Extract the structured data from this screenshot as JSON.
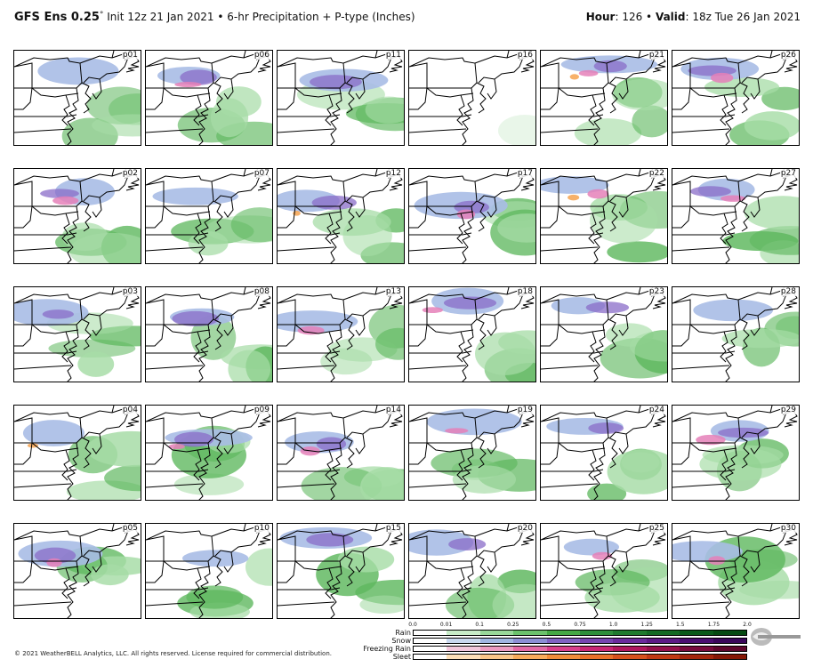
{
  "header": {
    "model": "GFS Ens 0.25",
    "degree": "°",
    "init": " Init 12z 21 Jan 2021",
    "sep": " • ",
    "product": "6-hr Precipitation + P-type (Inches)",
    "hour_label": "Hour",
    "hour_value": ": 126",
    "valid_label": "Valid",
    "valid_value": ": 18z Tue 26 Jan 2021"
  },
  "panels": [
    [
      "p01",
      "p06",
      "p11",
      "p16",
      "p21",
      "p26"
    ],
    [
      "p02",
      "p07",
      "p12",
      "p17",
      "p22",
      "p27"
    ],
    [
      "p03",
      "p08",
      "p13",
      "p18",
      "p23",
      "p28"
    ],
    [
      "p04",
      "p09",
      "p14",
      "p19",
      "p24",
      "p29"
    ],
    [
      "p05",
      "p10",
      "p15",
      "p20",
      "p25",
      "p30"
    ]
  ],
  "legend": {
    "ticks": [
      "0.0",
      "0.01",
      "0.1",
      "0.25",
      "0.5",
      "0.75",
      "1.0",
      "1.25",
      "1.5",
      "1.75",
      "2.0"
    ],
    "rows": [
      {
        "name": "Rain",
        "colors": [
          "#ffffff",
          "#c8ecc8",
          "#9ad89a",
          "#6cc26c",
          "#44a844",
          "#2e8f3a",
          "#1f7a2e",
          "#136a24",
          "#0a5a1a",
          "#054a12"
        ]
      },
      {
        "name": "Snow",
        "colors": [
          "#ffffff",
          "#c9d8ef",
          "#9fb6e2",
          "#8c8fd4",
          "#8062c2",
          "#7645b0",
          "#6a2b9c",
          "#5c1a86",
          "#4a0e70",
          "#3a065a"
        ]
      },
      {
        "name": "Freezing Rain",
        "colors": [
          "#ffffff",
          "#f2c8dc",
          "#ec9cc2",
          "#e36aa6",
          "#d93f8c",
          "#c92675",
          "#b0175f",
          "#94104d",
          "#780b3c",
          "#5e062d"
        ]
      },
      {
        "name": "Sleet",
        "colors": [
          "#ffffff",
          "#fde0b8",
          "#fbc78a",
          "#f8ac5c",
          "#f28e3a",
          "#e8702a",
          "#d6521e",
          "#c03a14",
          "#a3260c",
          "#861806"
        ]
      }
    ]
  },
  "copyright": "© 2021 WeatherBELL Analytics, LLC. All rights reserved. License required for commercial distribution.",
  "colors": {
    "rain": "#a6dca6",
    "rain_heavy": "#5fb85f",
    "snow": "#a9bde6",
    "snow_heavy": "#8a6cc8",
    "frz": "#e580b8",
    "sleet": "#f6a85a"
  }
}
